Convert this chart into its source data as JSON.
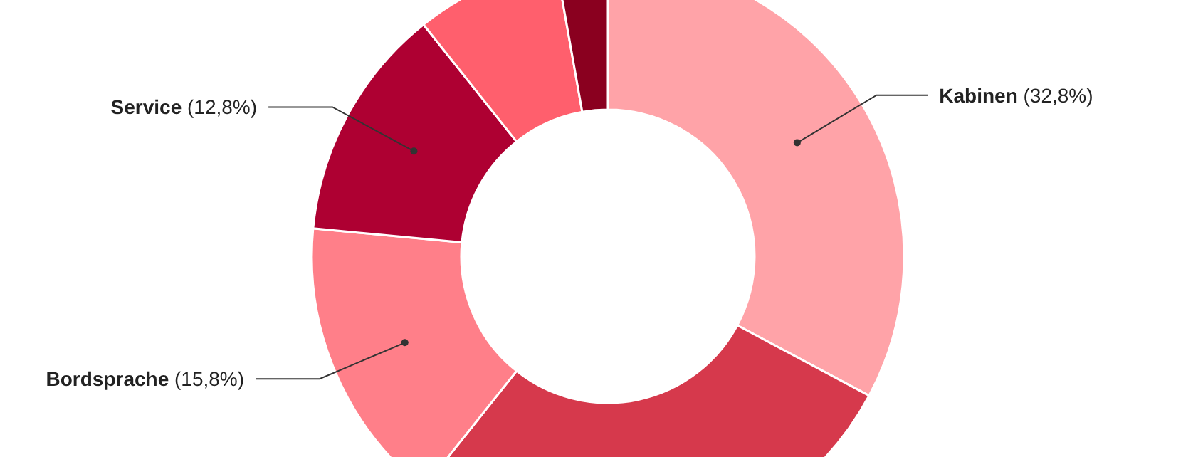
{
  "chart_data": {
    "type": "donut",
    "categories": [
      "Kabinen",
      null,
      "Bordsprache",
      "Service",
      null,
      null
    ],
    "values": [
      32.8,
      27.9,
      15.8,
      12.8,
      7.9,
      2.8
    ],
    "value_labels": [
      "(32,8%)",
      null,
      "(15,8%)",
      "(12,8%)",
      null,
      null
    ],
    "colors": [
      "#ffa3a8",
      "#d6394c",
      "#ff7f89",
      "#ae0032",
      "#ff5f6d",
      "#8a001f"
    ]
  }
}
